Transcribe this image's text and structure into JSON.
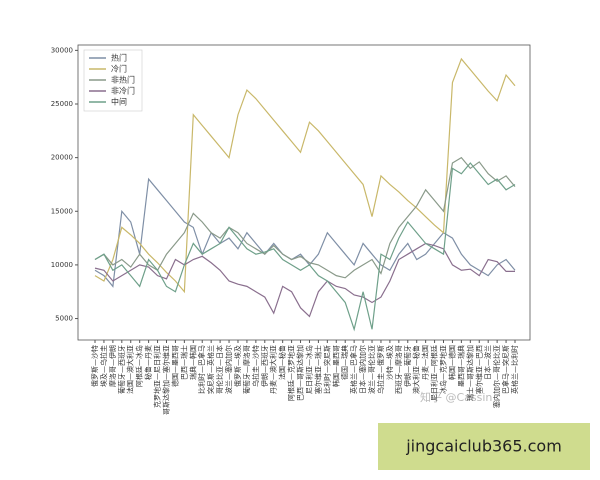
{
  "chart_data": {
    "type": "line",
    "categories": [
      "俄罗斯—沙特",
      "埃及—乌拉圭",
      "摩洛哥—伊朗",
      "葡萄牙—西班牙",
      "法国—澳大利亚",
      "阿根廷—冰岛",
      "秘鲁—丹麦",
      "克罗地亚—尼日利亚",
      "哥斯达黎加—塞尔维亚",
      "德国—墨西哥",
      "巴西—瑞士",
      "瑞典—韩国",
      "比利时—巴拿马",
      "突尼斯—英格兰",
      "哥伦比亚—日本",
      "波兰—塞内加尔",
      "俄罗斯—埃及",
      "葡萄牙—摩洛哥",
      "乌拉圭—沙特",
      "伊朗—西班牙",
      "丹麦—澳大利亚",
      "法国—秘鲁",
      "阿根廷—克罗地亚",
      "巴西—哥斯达黎加",
      "尼日利亚—冰岛",
      "塞尔维亚—瑞士",
      "比利时—突尼斯",
      "韩国—墨西哥",
      "德国—瑞典",
      "英格兰—巴拿马",
      "日本—塞内加尔",
      "波兰—哥伦比亚",
      "乌拉圭—俄罗斯",
      "沙特—埃及",
      "西班牙—摩洛哥",
      "伊朗—葡萄牙",
      "澳大利亚—秘鲁",
      "丹麦—法国",
      "尼日利亚—阿根廷",
      "冰岛—克罗地亚",
      "韩国—德国",
      "墨西哥—瑞典",
      "瑞士—哥斯达黎加",
      "塞尔维亚—巴西",
      "日本—波兰",
      "塞内加尔—哥伦比亚",
      "巴拿马—突尼斯",
      "英格兰—比利时"
    ],
    "series": [
      {
        "name": "热门",
        "color": "#7f8fa6",
        "values": [
          9500,
          9000,
          8000,
          15000,
          14000,
          11000,
          18000,
          17000,
          16000,
          15000,
          14000,
          13500,
          11000,
          13000,
          12000,
          12500,
          11500,
          13000,
          12000,
          11000,
          12000,
          11000,
          10500,
          11000,
          10000,
          11000,
          13000,
          12000,
          11000,
          10000,
          12000,
          11000,
          10000,
          9500,
          11000,
          12000,
          10500,
          11000,
          12000,
          13000,
          12500,
          11000,
          10000,
          9500,
          9000,
          10000,
          10500,
          9500
        ]
      },
      {
        "name": "冷门",
        "color": "#c9b86a",
        "values": [
          9000,
          8500,
          10500,
          13500,
          12800,
          12000,
          11000,
          10200,
          9300,
          8500,
          7500,
          24000,
          23000,
          22000,
          21000,
          20000,
          24000,
          26300,
          25500,
          24500,
          23500,
          22500,
          21500,
          20500,
          23300,
          22500,
          21500,
          20500,
          19500,
          18500,
          17500,
          14500,
          18300,
          17500,
          16800,
          16000,
          15300,
          14500,
          13700,
          13000,
          27000,
          29200,
          28200,
          27200,
          26200,
          25300,
          27700,
          26700
        ]
      },
      {
        "name": "非热门",
        "color": "#8a9a8a",
        "values": [
          10500,
          11000,
          10000,
          10500,
          9800,
          11000,
          10000,
          9500,
          11000,
          12000,
          13000,
          14800,
          14000,
          13000,
          12500,
          13500,
          13000,
          12000,
          11500,
          11000,
          11800,
          11000,
          10500,
          10800,
          10200,
          10000,
          9500,
          9000,
          8800,
          9500,
          10000,
          10500,
          9200,
          12000,
          13500,
          14500,
          15500,
          17000,
          16000,
          15000,
          19500,
          20000,
          19000,
          19600,
          18500,
          17800,
          18300,
          17300
        ]
      },
      {
        "name": "非冷门",
        "color": "#8a6f8e",
        "values": [
          9700,
          9500,
          8500,
          9000,
          9500,
          10000,
          9800,
          9000,
          8700,
          10500,
          10000,
          10500,
          10800,
          10200,
          9500,
          8500,
          8200,
          8000,
          7500,
          7000,
          5500,
          8000,
          7500,
          6000,
          5200,
          7500,
          8500,
          8000,
          7800,
          7200,
          7000,
          6500,
          7000,
          8500,
          10500,
          11000,
          11500,
          12000,
          11800,
          11500,
          10000,
          9500,
          9600,
          9000,
          10500,
          10300,
          9400,
          9400
        ]
      },
      {
        "name": "中间",
        "color": "#6fa08a",
        "values": [
          10500,
          11000,
          9500,
          10000,
          9000,
          8000,
          10500,
          9500,
          8000,
          7500,
          10000,
          12000,
          11000,
          11500,
          12000,
          13500,
          12500,
          11500,
          11000,
          11200,
          11500,
          10500,
          10000,
          9500,
          10000,
          9000,
          8500,
          7500,
          6500,
          4000,
          7500,
          4000,
          11000,
          10500,
          12500,
          14000,
          13000,
          12000,
          11500,
          11000,
          19000,
          18500,
          19500,
          18500,
          17500,
          18000,
          17000,
          17500
        ]
      }
    ],
    "ylim": [
      3000,
      30500
    ],
    "yticks": [
      5000,
      10000,
      15000,
      20000,
      25000,
      30000
    ],
    "legend": "upper left"
  },
  "watermarks": {
    "author": "知乎 @Cassin",
    "site": "jingcaiclub365.com"
  }
}
